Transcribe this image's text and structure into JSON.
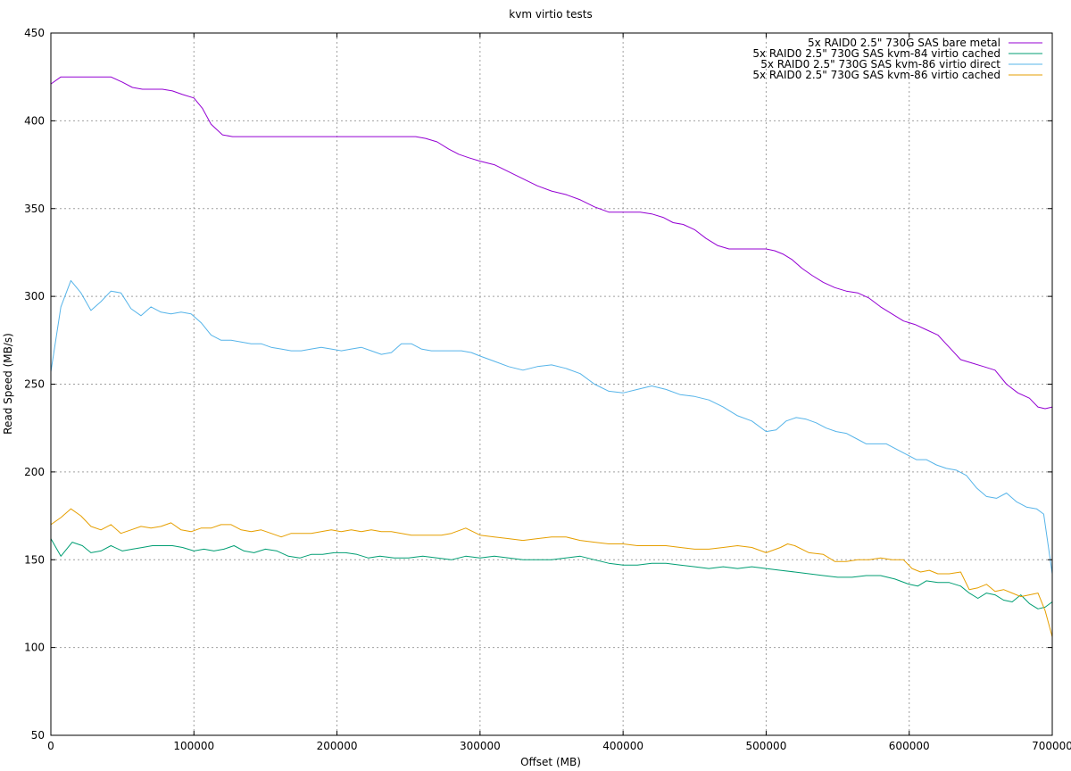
{
  "chart_data": {
    "type": "line",
    "title": "kvm virtio tests",
    "xlabel": "Offset (MB)",
    "ylabel": "Read Speed (MB/s)",
    "xlim": [
      0,
      700000
    ],
    "ylim": [
      50,
      450
    ],
    "xticks": [
      0,
      100000,
      200000,
      300000,
      400000,
      500000,
      600000,
      700000
    ],
    "yticks": [
      50,
      100,
      150,
      200,
      250,
      300,
      350,
      400,
      450
    ],
    "grid": true,
    "legend_position": "top-right",
    "series": [
      {
        "name": "5x RAID0 2.5\" 730G SAS bare metal",
        "color": "#9400d3",
        "x": [
          0,
          7000,
          15000,
          22000,
          28000,
          35000,
          42000,
          50000,
          57000,
          64000,
          71000,
          78000,
          85000,
          92000,
          100000,
          106000,
          112000,
          120000,
          127000,
          135000,
          150000,
          200000,
          250000,
          255000,
          262000,
          270000,
          278000,
          285000,
          292000,
          300000,
          310000,
          320000,
          330000,
          340000,
          350000,
          360000,
          370000,
          380000,
          390000,
          398000,
          405000,
          412000,
          420000,
          428000,
          435000,
          442000,
          450000,
          458000,
          466000,
          474000,
          480000,
          486000,
          492000,
          500000,
          506000,
          512000,
          518000,
          525000,
          532000,
          540000,
          548000,
          556000,
          564000,
          572000,
          580000,
          588000,
          596000,
          604000,
          612000,
          620000,
          628000,
          636000,
          644000,
          652000,
          660000,
          668000,
          676000,
          684000,
          690000,
          695000,
          700000
        ],
        "values": [
          421,
          425,
          425,
          425,
          425,
          425,
          425,
          422,
          419,
          418,
          418,
          418,
          417,
          415,
          413,
          407,
          398,
          392,
          391,
          391,
          391,
          391,
          391,
          391,
          390,
          388,
          384,
          381,
          379,
          377,
          375,
          371,
          367,
          363,
          360,
          358,
          355,
          351,
          348,
          348,
          348,
          348,
          347,
          345,
          342,
          341,
          338,
          333,
          329,
          327,
          327,
          327,
          327,
          327,
          326,
          324,
          321,
          316,
          312,
          308,
          305,
          303,
          302,
          299,
          294,
          290,
          286,
          284,
          281,
          278,
          271,
          264,
          262,
          260,
          258,
          250,
          245,
          242,
          237,
          236,
          237
        ]
      },
      {
        "name": "5x RAID0 2.5\" 730G SAS kvm-84 virtio cached",
        "color": "#009e73",
        "x": [
          0,
          7000,
          15000,
          22000,
          28000,
          35000,
          42000,
          50000,
          57000,
          64000,
          71000,
          78000,
          85000,
          92000,
          100000,
          107000,
          114000,
          121000,
          128000,
          135000,
          142000,
          150000,
          158000,
          166000,
          174000,
          182000,
          190000,
          198000,
          206000,
          214000,
          222000,
          230000,
          240000,
          250000,
          260000,
          270000,
          280000,
          290000,
          300000,
          310000,
          320000,
          330000,
          340000,
          350000,
          360000,
          370000,
          380000,
          390000,
          400000,
          410000,
          420000,
          430000,
          440000,
          450000,
          460000,
          470000,
          480000,
          490000,
          500000,
          510000,
          520000,
          530000,
          540000,
          550000,
          560000,
          570000,
          580000,
          590000,
          600000,
          606000,
          612000,
          620000,
          628000,
          636000,
          642000,
          648000,
          654000,
          660000,
          666000,
          672000,
          678000,
          684000,
          690000,
          695000,
          700000
        ],
        "values": [
          162,
          152,
          160,
          158,
          154,
          155,
          158,
          155,
          156,
          157,
          158,
          158,
          158,
          157,
          155,
          156,
          155,
          156,
          158,
          155,
          154,
          156,
          155,
          152,
          151,
          153,
          153,
          154,
          154,
          153,
          151,
          152,
          151,
          151,
          152,
          151,
          150,
          152,
          151,
          152,
          151,
          150,
          150,
          150,
          151,
          152,
          150,
          148,
          147,
          147,
          148,
          148,
          147,
          146,
          145,
          146,
          145,
          146,
          145,
          144,
          143,
          142,
          141,
          140,
          140,
          141,
          141,
          139,
          136,
          135,
          138,
          137,
          137,
          135,
          131,
          128,
          131,
          130,
          127,
          126,
          130,
          125,
          122,
          123,
          126
        ]
      },
      {
        "name": "5x RAID0 2.5\" 730G SAS kvm-86 virtio direct",
        "color": "#56b4e9",
        "x": [
          0,
          7000,
          14000,
          21000,
          28000,
          35000,
          42000,
          49000,
          56000,
          63000,
          70000,
          77000,
          84000,
          91000,
          98000,
          105000,
          112000,
          119000,
          126000,
          133000,
          140000,
          147000,
          154000,
          161000,
          168000,
          175000,
          182000,
          189000,
          196000,
          203000,
          210000,
          217000,
          224000,
          231000,
          238000,
          245000,
          252000,
          259000,
          266000,
          273000,
          280000,
          287000,
          294000,
          300000,
          310000,
          320000,
          330000,
          340000,
          350000,
          360000,
          370000,
          380000,
          390000,
          400000,
          410000,
          420000,
          430000,
          440000,
          450000,
          460000,
          470000,
          480000,
          490000,
          500000,
          507000,
          514000,
          521000,
          528000,
          535000,
          542000,
          549000,
          556000,
          563000,
          570000,
          577000,
          584000,
          591000,
          598000,
          605000,
          612000,
          619000,
          626000,
          633000,
          640000,
          647000,
          654000,
          661000,
          668000,
          675000,
          682000,
          689000,
          694000,
          700000
        ],
        "values": [
          257,
          294,
          309,
          302,
          292,
          297,
          303,
          302,
          293,
          289,
          294,
          291,
          290,
          291,
          290,
          285,
          278,
          275,
          275,
          274,
          273,
          273,
          271,
          270,
          269,
          269,
          270,
          271,
          270,
          269,
          270,
          271,
          269,
          267,
          268,
          273,
          273,
          270,
          269,
          269,
          269,
          269,
          268,
          266,
          263,
          260,
          258,
          260,
          261,
          259,
          256,
          250,
          246,
          245,
          247,
          249,
          247,
          244,
          243,
          241,
          237,
          232,
          229,
          223,
          224,
          229,
          231,
          230,
          228,
          225,
          223,
          222,
          219,
          216,
          216,
          216,
          213,
          210,
          207,
          207,
          204,
          202,
          201,
          198,
          191,
          186,
          185,
          188,
          183,
          180,
          179,
          176,
          142
        ]
      },
      {
        "name": "5x RAID0 2.5\" 730G SAS kvm-86 virtio cached",
        "color": "#e69f00",
        "x": [
          0,
          7000,
          14000,
          21000,
          28000,
          35000,
          42000,
          49000,
          56000,
          63000,
          70000,
          77000,
          84000,
          91000,
          98000,
          105000,
          112000,
          119000,
          126000,
          133000,
          140000,
          147000,
          154000,
          161000,
          168000,
          175000,
          182000,
          189000,
          196000,
          203000,
          210000,
          217000,
          224000,
          231000,
          238000,
          245000,
          252000,
          259000,
          266000,
          273000,
          280000,
          290000,
          300000,
          310000,
          320000,
          330000,
          340000,
          350000,
          360000,
          370000,
          380000,
          390000,
          400000,
          410000,
          420000,
          430000,
          440000,
          450000,
          460000,
          470000,
          480000,
          490000,
          500000,
          510000,
          515000,
          520000,
          530000,
          540000,
          548000,
          556000,
          564000,
          572000,
          580000,
          588000,
          596000,
          602000,
          608000,
          614000,
          620000,
          628000,
          636000,
          642000,
          648000,
          654000,
          660000,
          666000,
          672000,
          678000,
          684000,
          690000,
          695000,
          700000
        ],
        "values": [
          170,
          174,
          179,
          175,
          169,
          167,
          170,
          165,
          167,
          169,
          168,
          169,
          171,
          167,
          166,
          168,
          168,
          170,
          170,
          167,
          166,
          167,
          165,
          163,
          165,
          165,
          165,
          166,
          167,
          166,
          167,
          166,
          167,
          166,
          166,
          165,
          164,
          164,
          164,
          164,
          165,
          168,
          164,
          163,
          162,
          161,
          162,
          163,
          163,
          161,
          160,
          159,
          159,
          158,
          158,
          158,
          157,
          156,
          156,
          157,
          158,
          157,
          154,
          157,
          159,
          158,
          154,
          153,
          149,
          149,
          150,
          150,
          151,
          150,
          150,
          145,
          143,
          144,
          142,
          142,
          143,
          133,
          134,
          136,
          132,
          133,
          131,
          129,
          130,
          131,
          121,
          106
        ]
      }
    ]
  }
}
